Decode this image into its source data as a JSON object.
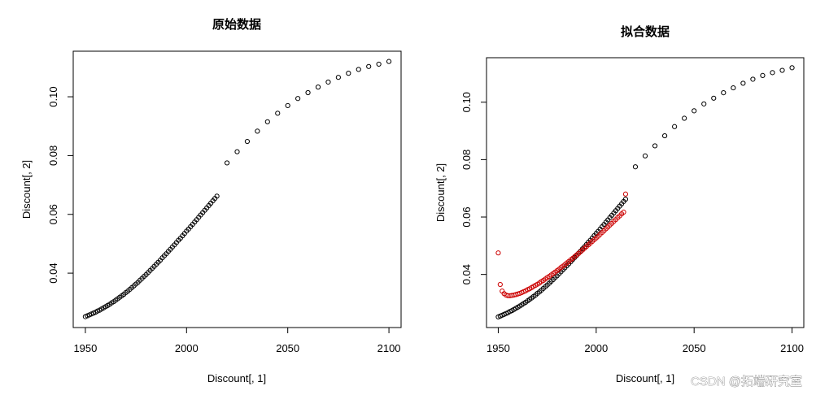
{
  "watermark": "CSDN @拓端研究室",
  "chart_data": [
    {
      "type": "scatter",
      "title": "原始数据",
      "xlabel": "Discount[, 1]",
      "ylabel": "Discount[, 2]",
      "xlim": [
        1944,
        2106
      ],
      "ylim": [
        0.0215,
        0.1155
      ],
      "xticks": [
        "1950",
        "2000",
        "2050",
        "2100"
      ],
      "yticks": [
        "0.04",
        "0.06",
        "0.08",
        "0.10"
      ],
      "series": [
        {
          "color": "#000000",
          "x": [
            1950,
            1951,
            1952,
            1953,
            1954,
            1955,
            1956,
            1957,
            1958,
            1959,
            1960,
            1961,
            1962,
            1963,
            1964,
            1965,
            1966,
            1967,
            1968,
            1969,
            1970,
            1971,
            1972,
            1973,
            1974,
            1975,
            1976,
            1977,
            1978,
            1979,
            1980,
            1981,
            1982,
            1983,
            1984,
            1985,
            1986,
            1987,
            1988,
            1989,
            1990,
            1991,
            1992,
            1993,
            1994,
            1995,
            1996,
            1997,
            1998,
            1999,
            2000,
            2001,
            2002,
            2003,
            2004,
            2005,
            2006,
            2007,
            2008,
            2009,
            2010,
            2011,
            2012,
            2013,
            2014,
            2015,
            2020,
            2025,
            2030,
            2035,
            2040,
            2045,
            2050,
            2055,
            2060,
            2065,
            2070,
            2075,
            2080,
            2085,
            2090,
            2095,
            2100
          ],
          "y": [
            0.0252,
            0.0255,
            0.0258,
            0.0261,
            0.0264,
            0.0267,
            0.0271,
            0.0274,
            0.0278,
            0.0282,
            0.0286,
            0.029,
            0.0294,
            0.0299,
            0.0303,
            0.0308,
            0.0313,
            0.0318,
            0.0323,
            0.0328,
            0.0334,
            0.0339,
            0.0345,
            0.0351,
            0.0357,
            0.0363,
            0.0369,
            0.0376,
            0.0382,
            0.0389,
            0.0395,
            0.0402,
            0.0409,
            0.0416,
            0.0423,
            0.043,
            0.0437,
            0.0444,
            0.0452,
            0.0459,
            0.0466,
            0.0474,
            0.0481,
            0.0489,
            0.0496,
            0.0504,
            0.0512,
            0.0519,
            0.0527,
            0.0535,
            0.0543,
            0.055,
            0.0558,
            0.0566,
            0.0574,
            0.0582,
            0.059,
            0.0598,
            0.0606,
            0.0614,
            0.0622,
            0.063,
            0.0638,
            0.0646,
            0.0654,
            0.0662,
            0.0775,
            0.0813,
            0.0848,
            0.0883,
            0.0915,
            0.0944,
            0.097,
            0.0994,
            0.1014,
            0.1033,
            0.105,
            0.1066,
            0.108,
            0.1093,
            0.1103,
            0.1111,
            0.112
          ]
        }
      ]
    },
    {
      "type": "scatter",
      "title": "拟合数据",
      "xlabel": "Discount[, 1]",
      "ylabel": "Discount[, 2]",
      "xlim": [
        1944,
        2106
      ],
      "ylim": [
        0.0215,
        0.1155
      ],
      "xticks": [
        "1950",
        "2000",
        "2050",
        "2100"
      ],
      "yticks": [
        "0.04",
        "0.06",
        "0.08",
        "0.10"
      ],
      "series": [
        {
          "color": "#000000",
          "x": [
            1950,
            1951,
            1952,
            1953,
            1954,
            1955,
            1956,
            1957,
            1958,
            1959,
            1960,
            1961,
            1962,
            1963,
            1964,
            1965,
            1966,
            1967,
            1968,
            1969,
            1970,
            1971,
            1972,
            1973,
            1974,
            1975,
            1976,
            1977,
            1978,
            1979,
            1980,
            1981,
            1982,
            1983,
            1984,
            1985,
            1986,
            1987,
            1988,
            1989,
            1990,
            1991,
            1992,
            1993,
            1994,
            1995,
            1996,
            1997,
            1998,
            1999,
            2000,
            2001,
            2002,
            2003,
            2004,
            2005,
            2006,
            2007,
            2008,
            2009,
            2010,
            2011,
            2012,
            2013,
            2014,
            2015,
            2020,
            2025,
            2030,
            2035,
            2040,
            2045,
            2050,
            2055,
            2060,
            2065,
            2070,
            2075,
            2080,
            2085,
            2090,
            2095,
            2100
          ],
          "y": [
            0.0252,
            0.0255,
            0.0258,
            0.0261,
            0.0264,
            0.0267,
            0.0271,
            0.0274,
            0.0278,
            0.0282,
            0.0286,
            0.029,
            0.0294,
            0.0299,
            0.0303,
            0.0308,
            0.0313,
            0.0318,
            0.0323,
            0.0328,
            0.0334,
            0.0339,
            0.0345,
            0.0351,
            0.0357,
            0.0363,
            0.0369,
            0.0376,
            0.0382,
            0.0389,
            0.0395,
            0.0402,
            0.0409,
            0.0416,
            0.0423,
            0.043,
            0.0437,
            0.0444,
            0.0452,
            0.0459,
            0.0466,
            0.0474,
            0.0481,
            0.0489,
            0.0496,
            0.0504,
            0.0512,
            0.0519,
            0.0527,
            0.0535,
            0.0543,
            0.055,
            0.0558,
            0.0566,
            0.0574,
            0.0582,
            0.059,
            0.0598,
            0.0606,
            0.0614,
            0.0622,
            0.063,
            0.0638,
            0.0646,
            0.0654,
            0.0662,
            0.0775,
            0.0813,
            0.0848,
            0.0883,
            0.0915,
            0.0944,
            0.097,
            0.0994,
            0.1014,
            0.1033,
            0.105,
            0.1066,
            0.108,
            0.1093,
            0.1103,
            0.1111,
            0.112
          ]
        },
        {
          "color": "#cc0000",
          "x": [
            1950,
            1951,
            1952,
            1953,
            1954,
            1955,
            1956,
            1957,
            1958,
            1959,
            1960,
            1961,
            1962,
            1963,
            1964,
            1965,
            1966,
            1967,
            1968,
            1969,
            1970,
            1971,
            1972,
            1973,
            1974,
            1975,
            1976,
            1977,
            1978,
            1979,
            1980,
            1981,
            1982,
            1983,
            1984,
            1985,
            1986,
            1987,
            1988,
            1989,
            1990,
            1991,
            1992,
            1993,
            1994,
            1995,
            1996,
            1997,
            1998,
            1999,
            2000,
            2001,
            2002,
            2003,
            2004,
            2005,
            2006,
            2007,
            2008,
            2009,
            2010,
            2011,
            2012,
            2013,
            2014,
            2015
          ],
          "y": [
            0.0475,
            0.0365,
            0.0342,
            0.0333,
            0.0328,
            0.0326,
            0.0326,
            0.0327,
            0.0328,
            0.033,
            0.0332,
            0.0334,
            0.0337,
            0.034,
            0.0343,
            0.0347,
            0.035,
            0.0354,
            0.0358,
            0.0362,
            0.0366,
            0.037,
            0.0375,
            0.0379,
            0.0384,
            0.0389,
            0.0393,
            0.0398,
            0.0403,
            0.0408,
            0.0413,
            0.0418,
            0.0424,
            0.0429,
            0.0434,
            0.044,
            0.0445,
            0.0451,
            0.0456,
            0.0462,
            0.0468,
            0.0473,
            0.0479,
            0.0485,
            0.0491,
            0.0497,
            0.0503,
            0.0509,
            0.0515,
            0.0521,
            0.0527,
            0.0533,
            0.054,
            0.0546,
            0.0552,
            0.0559,
            0.0565,
            0.0572,
            0.0578,
            0.0585,
            0.0591,
            0.0598,
            0.0604,
            0.0611,
            0.0617,
            0.068
          ]
        }
      ]
    }
  ]
}
